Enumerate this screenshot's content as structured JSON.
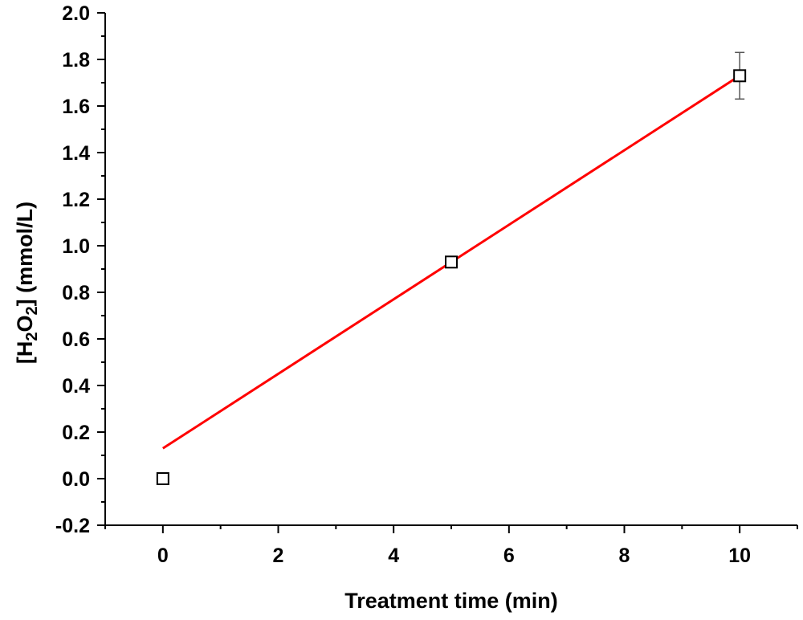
{
  "chart_data": {
    "type": "scatter",
    "title": "",
    "xlabel": "Treatment time (min)",
    "ylabel": {
      "prefix": "[H",
      "sub1": "2",
      "mid": "O",
      "sub2": "2",
      "suffix": "] (mmol/L)"
    },
    "xlim": [
      -1,
      11
    ],
    "ylim": [
      -0.2,
      2.0
    ],
    "xticks": [
      0,
      2,
      4,
      6,
      8,
      10
    ],
    "xtick_labels": [
      "0",
      "2",
      "4",
      "6",
      "8",
      "10"
    ],
    "yticks": [
      -0.2,
      0.0,
      0.2,
      0.4,
      0.6,
      0.8,
      1.0,
      1.2,
      1.4,
      1.6,
      1.8,
      2.0
    ],
    "ytick_labels": [
      "-0.2",
      "0.0",
      "0.2",
      "0.4",
      "0.6",
      "0.8",
      "1.0",
      "1.2",
      "1.4",
      "1.6",
      "1.8",
      "2.0"
    ],
    "grid": false,
    "series": [
      {
        "marker": "open-square",
        "color": "#000000",
        "x": [
          0,
          5,
          10
        ],
        "y": [
          0.0,
          0.93,
          1.73
        ],
        "error": [
          0,
          0,
          0.1
        ]
      }
    ],
    "fit_line": {
      "color": "#ff0000",
      "x": [
        0,
        10
      ],
      "y": [
        0.13,
        1.73
      ]
    }
  }
}
